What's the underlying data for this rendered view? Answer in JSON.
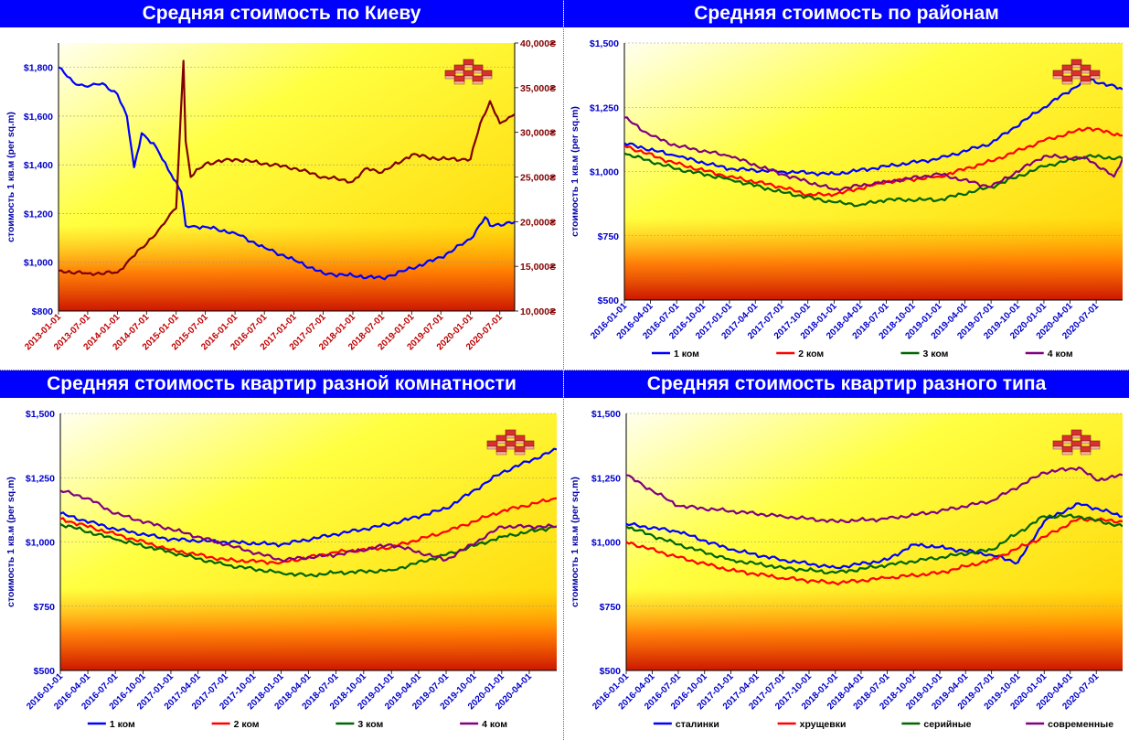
{
  "panels": [
    {
      "id": "kiev",
      "title": "Средняя стоимость по Киеву",
      "ylabel": "стоимость 1 кв.м (per sq.m)",
      "chart_data": {
        "type": "line",
        "x_ticks": [
          "2013-01-01",
          "2013-07-01",
          "2014-01-01",
          "2014-07-01",
          "2015-01-01",
          "2015-07-01",
          "2016-01-01",
          "2016-07-01",
          "2017-01-01",
          "2017-07-01",
          "2018-01-01",
          "2018-07-01",
          "2019-01-01",
          "2019-07-01",
          "2020-01-01",
          "2020-07-01"
        ],
        "x_range": [
          "2013-01-01",
          "2020-10-01"
        ],
        "y_left_ticks": [
          "$800",
          "$1,000",
          "$1,200",
          "$1,400",
          "$1,600",
          "$1,800"
        ],
        "y_left_range": [
          800,
          1900
        ],
        "y_right_ticks": [
          "10,000₴",
          "15,000₴",
          "20,000₴",
          "25,000₴",
          "30,000₴",
          "35,000₴",
          "40,000₴"
        ],
        "y_right_range": [
          10000,
          40000
        ],
        "series": [
          {
            "axis": "left",
            "color": "#0000ff",
            "x": [
              "2013-01-01",
              "2013-04-01",
              "2013-07-01",
              "2013-10-01",
              "2014-01-01",
              "2014-03-01",
              "2014-04-15",
              "2014-06-01",
              "2014-09-01",
              "2014-12-01",
              "2015-02-01",
              "2015-03-01",
              "2015-07-01",
              "2016-01-01",
              "2016-07-01",
              "2017-01-01",
              "2017-07-01",
              "2018-01-01",
              "2018-07-01",
              "2019-01-01",
              "2019-07-01",
              "2020-01-01",
              "2020-04-01",
              "2020-05-01",
              "2020-10-01"
            ],
            "y": [
              1800,
              1740,
              1720,
              1735,
              1690,
              1600,
              1390,
              1530,
              1470,
              1360,
              1290,
              1150,
              1145,
              1120,
              1060,
              1010,
              955,
              945,
              935,
              975,
              1020,
              1095,
              1185,
              1150,
              1165
            ]
          },
          {
            "axis": "right",
            "color": "#800000",
            "x": [
              "2013-01-01",
              "2013-07-01",
              "2014-01-01",
              "2014-04-01",
              "2014-07-01",
              "2014-10-01",
              "2015-01-01",
              "2015-02-15",
              "2015-03-01",
              "2015-04-01",
              "2015-07-01",
              "2016-01-01",
              "2016-07-01",
              "2017-01-01",
              "2017-07-01",
              "2018-01-01",
              "2018-04-01",
              "2018-07-01",
              "2019-01-01",
              "2019-07-01",
              "2020-01-01",
              "2020-03-01",
              "2020-05-01",
              "2020-07-01",
              "2020-10-01"
            ],
            "y": [
              14500,
              14200,
              14300,
              16000,
              17500,
              19500,
              21500,
              38000,
              29000,
              25000,
              26500,
              27000,
              26500,
              26000,
              25000,
              24500,
              26000,
              25500,
              27500,
              27000,
              27000,
              31000,
              33500,
              31000,
              32000
            ]
          }
        ]
      }
    },
    {
      "id": "districts",
      "title": "Средняя стоимость по районам",
      "ylabel": "стоимость 1 кв.м (per sq.m)",
      "chart_data": {
        "type": "line",
        "x_ticks": [
          "2016-01-01",
          "2016-04-01",
          "2016-07-01",
          "2016-10-01",
          "2017-01-01",
          "2017-04-01",
          "2017-07-01",
          "2017-10-01",
          "2018-01-01",
          "2018-04-01",
          "2018-07-01",
          "2018-10-01",
          "2019-01-01",
          "2019-04-01",
          "2019-07-01",
          "2019-10-01",
          "2020-01-01",
          "2020-04-01",
          "2020-07-01"
        ],
        "x_range": [
          "2016-01-01",
          "2020-10-01"
        ],
        "y_ticks": [
          "$500",
          "$750",
          "$1,000",
          "$1,250",
          "$1,500"
        ],
        "y_range": [
          500,
          1500
        ],
        "legend": [
          "1 ком",
          "2 ком",
          "3 ком",
          "4 ком"
        ],
        "series": [
          {
            "name": "1 ком",
            "color": "#0000ff",
            "x": [
              "2016-01-01",
              "2016-07-01",
              "2017-01-01",
              "2017-07-01",
              "2018-01-01",
              "2018-07-01",
              "2019-01-01",
              "2019-07-01",
              "2020-01-01",
              "2020-06-01",
              "2020-10-01"
            ],
            "y": [
              1110,
              1060,
              1010,
              1000,
              990,
              1020,
              1050,
              1110,
              1250,
              1360,
              1320
            ]
          },
          {
            "name": "2 ком",
            "color": "#ff0000",
            "x": [
              "2016-01-01",
              "2016-07-01",
              "2017-01-01",
              "2017-07-01",
              "2017-10-01",
              "2018-01-01",
              "2018-07-01",
              "2019-01-01",
              "2019-07-01",
              "2020-01-01",
              "2020-06-01",
              "2020-10-01"
            ],
            "y": [
              1100,
              1030,
              980,
              940,
              910,
              910,
              960,
              980,
              1040,
              1120,
              1170,
              1140
            ]
          },
          {
            "name": "3 ком",
            "color": "#006400",
            "x": [
              "2016-01-01",
              "2016-07-01",
              "2017-01-01",
              "2017-07-01",
              "2018-01-01",
              "2018-04-01",
              "2018-07-01",
              "2019-01-01",
              "2019-07-01",
              "2020-01-01",
              "2020-06-01",
              "2020-10-01"
            ],
            "y": [
              1070,
              1010,
              970,
              920,
              880,
              870,
              890,
              890,
              940,
              1020,
              1060,
              1050
            ]
          },
          {
            "name": "4 ком",
            "color": "#800080",
            "x": [
              "2016-01-01",
              "2016-04-01",
              "2016-07-01",
              "2017-01-01",
              "2017-07-01",
              "2018-01-01",
              "2018-07-01",
              "2019-01-01",
              "2019-07-01",
              "2020-01-01",
              "2020-06-01",
              "2020-09-01",
              "2020-10-01"
            ],
            "y": [
              1210,
              1140,
              1100,
              1060,
              990,
              930,
              960,
              990,
              940,
              1060,
              1050,
              980,
              1050
            ]
          }
        ]
      }
    },
    {
      "id": "rooms",
      "title": "Средняя стоимость квартир разной комнатности",
      "ylabel": "стоимость 1 кв.м (per sq.m)",
      "chart_data": {
        "type": "line",
        "x_ticks": [
          "2016-01-01",
          "2016-04-01",
          "2016-07-01",
          "2016-10-01",
          "2017-01-01",
          "2017-04-01",
          "2017-07-01",
          "2017-10-01",
          "2018-01-01",
          "2018-04-01",
          "2018-07-01",
          "2018-10-01",
          "2019-01-01",
          "2019-04-01",
          "2019-07-01",
          "2019-10-01",
          "2020-01-01",
          "2020-04-01"
        ],
        "x_range": [
          "2016-01-01",
          "2020-07-01"
        ],
        "y_ticks": [
          "$500",
          "$750",
          "$1,000",
          "$1,250",
          "$1,500"
        ],
        "y_range": [
          500,
          1500
        ],
        "legend": [
          "1 ком",
          "2 ком",
          "3 ком",
          "4 ком"
        ],
        "series": [
          {
            "name": "1 ком",
            "color": "#0000ff",
            "x": [
              "2016-01-01",
              "2016-07-01",
              "2017-01-01",
              "2017-07-01",
              "2018-01-01",
              "2018-07-01",
              "2019-01-01",
              "2019-07-01",
              "2020-01-01",
              "2020-07-01"
            ],
            "y": [
              1110,
              1050,
              1010,
              1000,
              990,
              1030,
              1070,
              1130,
              1270,
              1360
            ]
          },
          {
            "name": "2 ком",
            "color": "#ff0000",
            "x": [
              "2016-01-01",
              "2016-07-01",
              "2017-01-01",
              "2017-07-01",
              "2018-01-01",
              "2018-07-01",
              "2019-01-01",
              "2019-07-01",
              "2020-01-01",
              "2020-07-01"
            ],
            "y": [
              1090,
              1030,
              970,
              930,
              920,
              960,
              980,
              1040,
              1120,
              1170
            ]
          },
          {
            "name": "3 ком",
            "color": "#006400",
            "x": [
              "2016-01-01",
              "2016-07-01",
              "2017-01-01",
              "2017-07-01",
              "2018-01-01",
              "2018-04-01",
              "2018-07-01",
              "2019-01-01",
              "2019-07-01",
              "2020-01-01",
              "2020-07-01"
            ],
            "y": [
              1070,
              1010,
              960,
              910,
              880,
              870,
              880,
              890,
              950,
              1020,
              1060
            ]
          },
          {
            "name": "4 ком",
            "color": "#800080",
            "x": [
              "2016-01-01",
              "2016-04-01",
              "2016-07-01",
              "2017-01-01",
              "2017-07-01",
              "2018-01-01",
              "2018-07-01",
              "2019-01-01",
              "2019-07-01",
              "2020-01-01",
              "2020-07-01"
            ],
            "y": [
              1200,
              1170,
              1110,
              1050,
              990,
              930,
              950,
              990,
              930,
              1060,
              1060
            ]
          }
        ]
      }
    },
    {
      "id": "types",
      "title": "Средняя стоимость квартир разного типа",
      "ylabel": "стоимость 1 кв.м (per sq.m)",
      "chart_data": {
        "type": "line",
        "x_ticks": [
          "2016-01-01",
          "2016-04-01",
          "2016-07-01",
          "2016-10-01",
          "2017-01-01",
          "2017-04-01",
          "2017-07-01",
          "2017-10-01",
          "2018-01-01",
          "2018-04-01",
          "2018-07-01",
          "2018-10-01",
          "2019-01-01",
          "2019-04-01",
          "2019-07-01",
          "2019-10-01",
          "2020-01-01",
          "2020-04-01",
          "2020-07-01"
        ],
        "x_range": [
          "2016-01-01",
          "2020-10-01"
        ],
        "y_ticks": [
          "$500",
          "$750",
          "$1,000",
          "$1,250",
          "$1,500"
        ],
        "y_range": [
          500,
          1500
        ],
        "legend": [
          "сталинки",
          "хрущевки",
          "серийные",
          "современные"
        ],
        "series": [
          {
            "name": "сталинки",
            "color": "#0000ff",
            "x": [
              "2016-01-01",
              "2016-07-01",
              "2017-01-01",
              "2017-07-01",
              "2018-01-01",
              "2018-07-01",
              "2018-10-01",
              "2019-01-01",
              "2019-07-01",
              "2019-10-01",
              "2020-01-01",
              "2020-05-01",
              "2020-10-01"
            ],
            "y": [
              1070,
              1040,
              970,
              930,
              900,
              930,
              990,
              980,
              950,
              920,
              1080,
              1150,
              1100
            ]
          },
          {
            "name": "хрущевки",
            "color": "#ff0000",
            "x": [
              "2016-01-01",
              "2016-07-01",
              "2017-01-01",
              "2017-07-01",
              "2018-01-01",
              "2018-07-01",
              "2019-01-01",
              "2019-07-01",
              "2020-01-01",
              "2020-05-01",
              "2020-10-01"
            ],
            "y": [
              1000,
              940,
              890,
              860,
              840,
              860,
              880,
              930,
              1020,
              1090,
              1080
            ]
          },
          {
            "name": "серийные",
            "color": "#006400",
            "x": [
              "2016-01-01",
              "2016-07-01",
              "2017-01-01",
              "2017-07-01",
              "2018-01-01",
              "2018-07-01",
              "2019-01-01",
              "2019-07-01",
              "2020-01-01",
              "2020-05-01",
              "2020-10-01"
            ],
            "y": [
              1060,
              990,
              930,
              900,
              880,
              910,
              940,
              970,
              1100,
              1100,
              1060
            ]
          },
          {
            "name": "современные",
            "color": "#800080",
            "x": [
              "2016-01-01",
              "2016-04-01",
              "2016-07-01",
              "2017-01-01",
              "2017-07-01",
              "2018-01-01",
              "2018-07-01",
              "2019-01-01",
              "2019-07-01",
              "2020-01-01",
              "2020-05-01",
              "2020-07-01",
              "2020-10-01"
            ],
            "y": [
              1260,
              1200,
              1140,
              1120,
              1100,
              1080,
              1090,
              1120,
              1160,
              1270,
              1290,
              1240,
              1260
            ]
          }
        ]
      }
    }
  ]
}
